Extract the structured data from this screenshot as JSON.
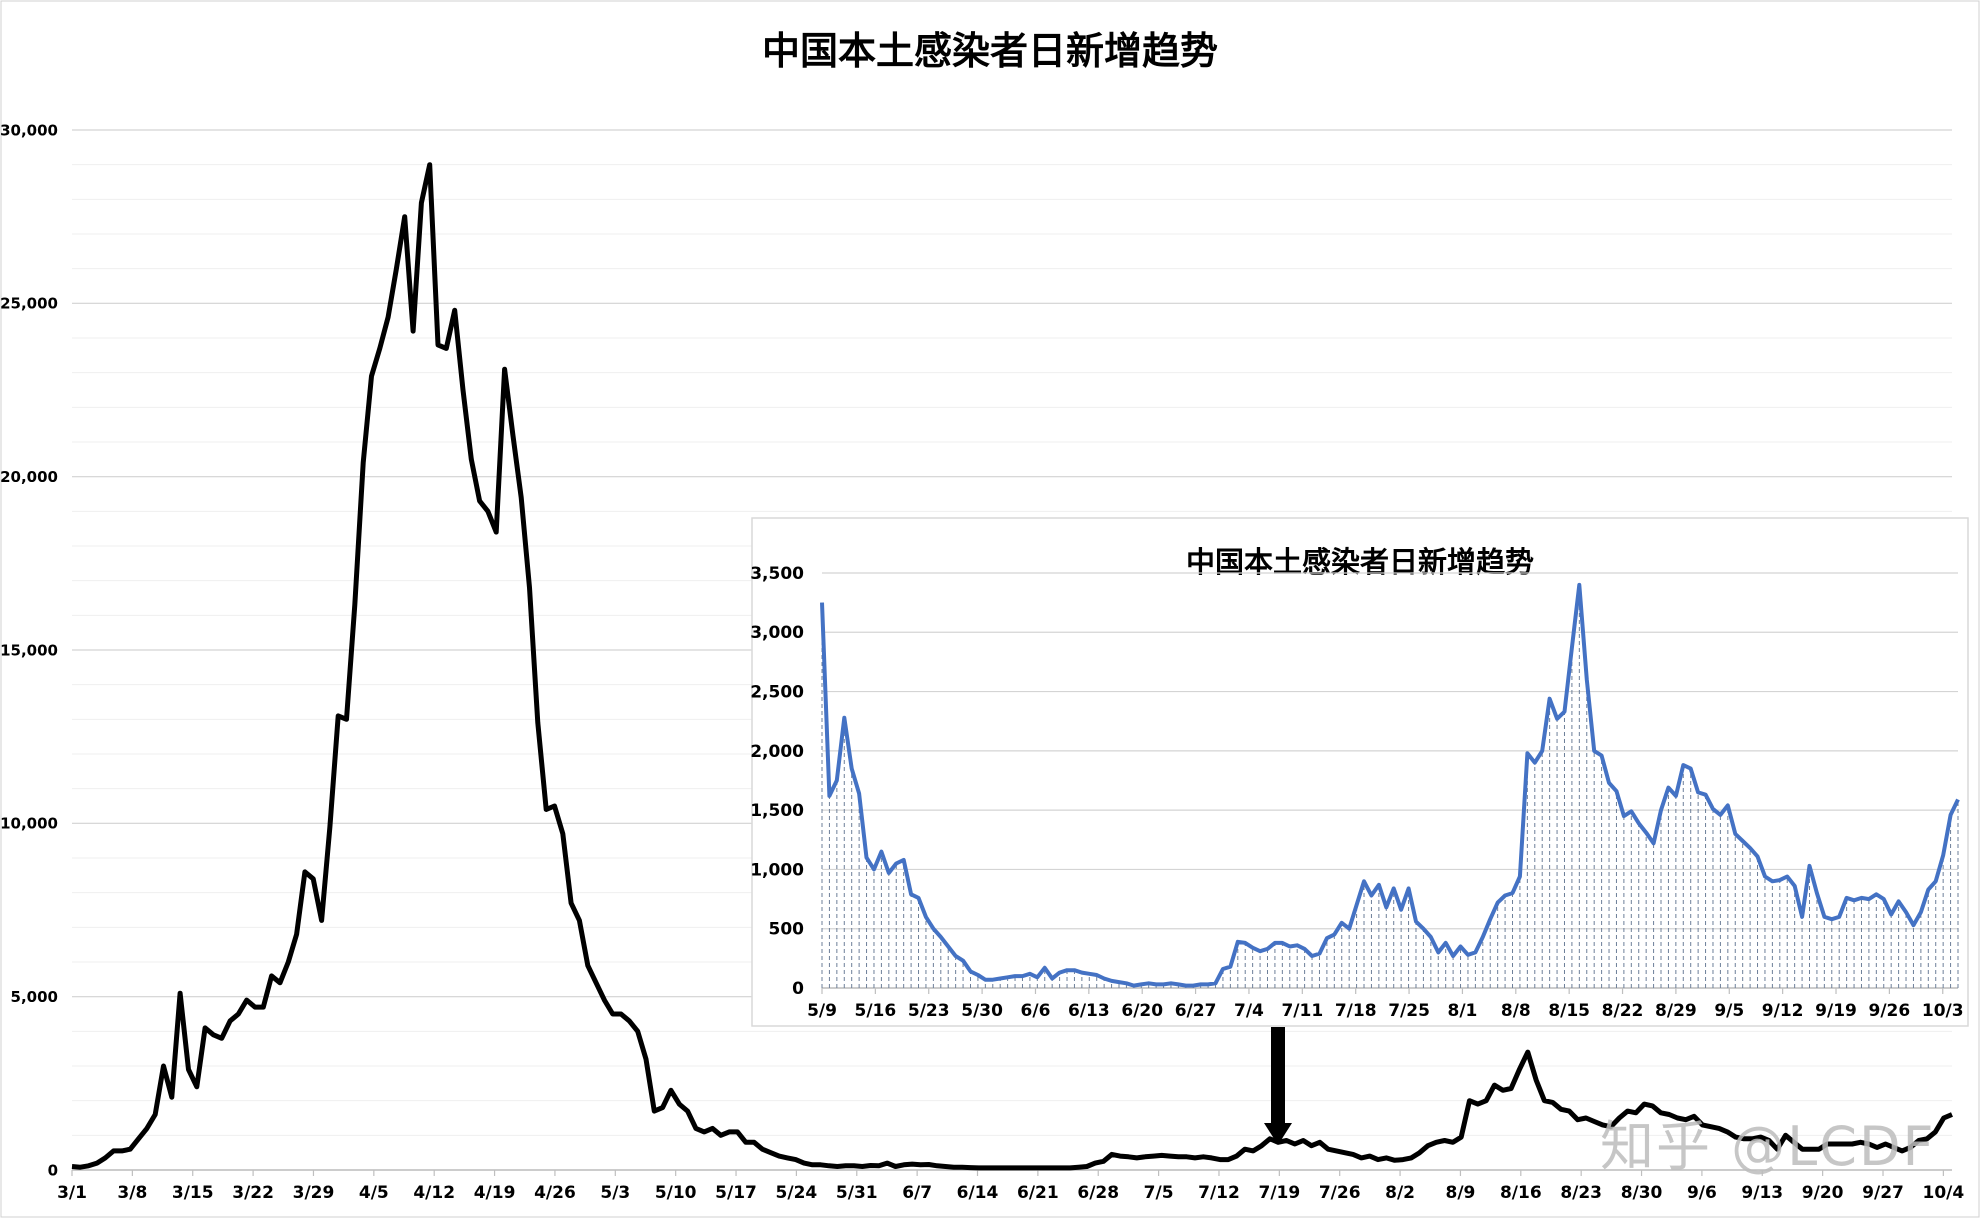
{
  "chart_data": [
    {
      "type": "line",
      "title": "中国本土感染者日新增趋势",
      "xlabel": "",
      "ylabel": "",
      "ylim": [
        0,
        30000
      ],
      "yticks": [
        "0",
        "5,000",
        "10,000",
        "15,000",
        "20,000",
        "25,000",
        "30,000"
      ],
      "ytick_values": [
        0,
        5000,
        10000,
        15000,
        20000,
        25000,
        30000
      ],
      "xticks": [
        "3/1",
        "3/8",
        "3/15",
        "3/22",
        "3/29",
        "4/5",
        "4/12",
        "4/19",
        "4/26",
        "5/3",
        "5/10",
        "5/17",
        "5/24",
        "5/31",
        "6/7",
        "6/14",
        "6/21",
        "6/28",
        "7/5",
        "7/12",
        "7/19",
        "7/26",
        "8/2",
        "8/9",
        "8/16",
        "8/23",
        "8/30",
        "9/6",
        "9/13",
        "9/20",
        "9/27",
        "10/4"
      ],
      "x_start": "3/1",
      "x_end": "10/5",
      "grid": true,
      "line_color": "#000000",
      "series": [
        {
          "values": [
            100,
            80,
            120,
            200,
            350,
            550,
            550,
            600,
            900,
            1200,
            1600,
            3000,
            2100,
            5100,
            2900,
            2400,
            4100,
            3900,
            3800,
            4300,
            4500,
            4900,
            4700,
            4700,
            5600,
            5400,
            6000,
            6800,
            8600,
            8400,
            7200,
            9900,
            13100,
            13000,
            16300,
            20400,
            22900,
            23700,
            24600,
            26000,
            27500,
            24200,
            27900,
            29000,
            23800,
            23700,
            24800,
            22500,
            20500,
            19300,
            19000,
            18400,
            23100,
            21200,
            19400,
            16800,
            12900,
            10400,
            10500,
            9700,
            7700,
            7200,
            5900,
            5400,
            4900,
            4500,
            4500,
            4300,
            4000,
            3200,
            1700,
            1800,
            2300,
            1900,
            1700,
            1200,
            1100,
            1200,
            1000,
            1100,
            1100,
            800,
            800,
            600,
            500,
            400,
            350,
            300,
            200,
            150,
            150,
            120,
            100,
            120,
            120,
            100,
            130,
            120,
            200,
            100,
            150,
            170,
            150,
            160,
            120,
            100,
            80,
            80,
            70,
            60,
            60,
            60,
            60,
            60,
            60,
            60,
            60,
            60,
            60,
            60,
            60,
            80,
            100,
            200,
            250,
            450,
            400,
            380,
            350,
            380,
            400,
            420,
            400,
            380,
            380,
            350,
            380,
            350,
            300,
            300,
            400,
            600,
            550,
            700,
            900,
            800,
            850,
            750,
            850,
            700,
            800,
            600,
            550,
            500,
            450,
            350,
            400,
            300,
            350,
            280,
            300,
            350,
            500,
            700,
            800,
            850,
            800,
            950,
            2000,
            1900,
            2000,
            2450,
            2300,
            2350,
            2900,
            3400,
            2600,
            2000,
            1950,
            1750,
            1700,
            1450,
            1500,
            1400,
            1300,
            1250,
            1500,
            1700,
            1650,
            1900,
            1850,
            1650,
            1600,
            1500,
            1450,
            1550,
            1300,
            1250,
            1200,
            1100,
            950,
            900,
            900,
            950,
            850,
            600,
            1000,
            800,
            600,
            600,
            600,
            750,
            750,
            750,
            750,
            800,
            750,
            650,
            750,
            650,
            550,
            650,
            850,
            900,
            1100,
            1500,
            1600
          ]
        }
      ]
    },
    {
      "type": "area",
      "title": "中国本土感染者日新增趋势",
      "xlabel": "",
      "ylabel": "",
      "ylim": [
        0,
        3500
      ],
      "yticks": [
        "0",
        "500",
        "1,000",
        "1,500",
        "2,000",
        "2,500",
        "3,000",
        "3,500"
      ],
      "ytick_values": [
        0,
        500,
        1000,
        1500,
        2000,
        2500,
        3000,
        3500
      ],
      "xticks": [
        "5/9",
        "5/16",
        "5/23",
        "5/30",
        "6/6",
        "6/13",
        "6/20",
        "6/27",
        "7/4",
        "7/11",
        "7/18",
        "7/25",
        "8/1",
        "8/8",
        "8/15",
        "8/22",
        "8/29",
        "9/5",
        "9/12",
        "9/19",
        "9/26",
        "10/3"
      ],
      "x_start": "5/9",
      "x_end": "10/5",
      "grid": true,
      "line_color": "#4472C4",
      "fill": "dashed vertical lines",
      "series": [
        {
          "values": [
            3250,
            1620,
            1750,
            2280,
            1850,
            1640,
            1100,
            1000,
            1150,
            970,
            1050,
            1080,
            790,
            760,
            600,
            500,
            430,
            350,
            270,
            230,
            140,
            110,
            70,
            70,
            80,
            90,
            100,
            100,
            120,
            90,
            170,
            80,
            130,
            150,
            150,
            130,
            120,
            110,
            80,
            60,
            50,
            40,
            20,
            30,
            40,
            30,
            30,
            40,
            30,
            20,
            20,
            30,
            30,
            40,
            160,
            180,
            390,
            380,
            340,
            310,
            330,
            380,
            380,
            350,
            360,
            330,
            270,
            290,
            420,
            450,
            550,
            500,
            700,
            900,
            780,
            870,
            680,
            840,
            660,
            840,
            560,
            500,
            430,
            300,
            380,
            270,
            350,
            280,
            300,
            430,
            580,
            720,
            780,
            800,
            940,
            1980,
            1900,
            2000,
            2440,
            2270,
            2330,
            2870,
            3400,
            2600,
            2000,
            1960,
            1730,
            1660,
            1450,
            1490,
            1390,
            1310,
            1220,
            1500,
            1690,
            1620,
            1880,
            1850,
            1650,
            1630,
            1510,
            1460,
            1540,
            1300,
            1240,
            1180,
            1110,
            940,
            900,
            910,
            940,
            860,
            600,
            1030,
            800,
            600,
            580,
            600,
            760,
            740,
            760,
            750,
            790,
            750,
            620,
            730,
            640,
            530,
            640,
            830,
            900,
            1120,
            1460,
            1590
          ]
        }
      ]
    }
  ],
  "arrow": {
    "color": "#000000",
    "direction": "down"
  },
  "watermark": {
    "text": "知乎 @LCDF"
  }
}
